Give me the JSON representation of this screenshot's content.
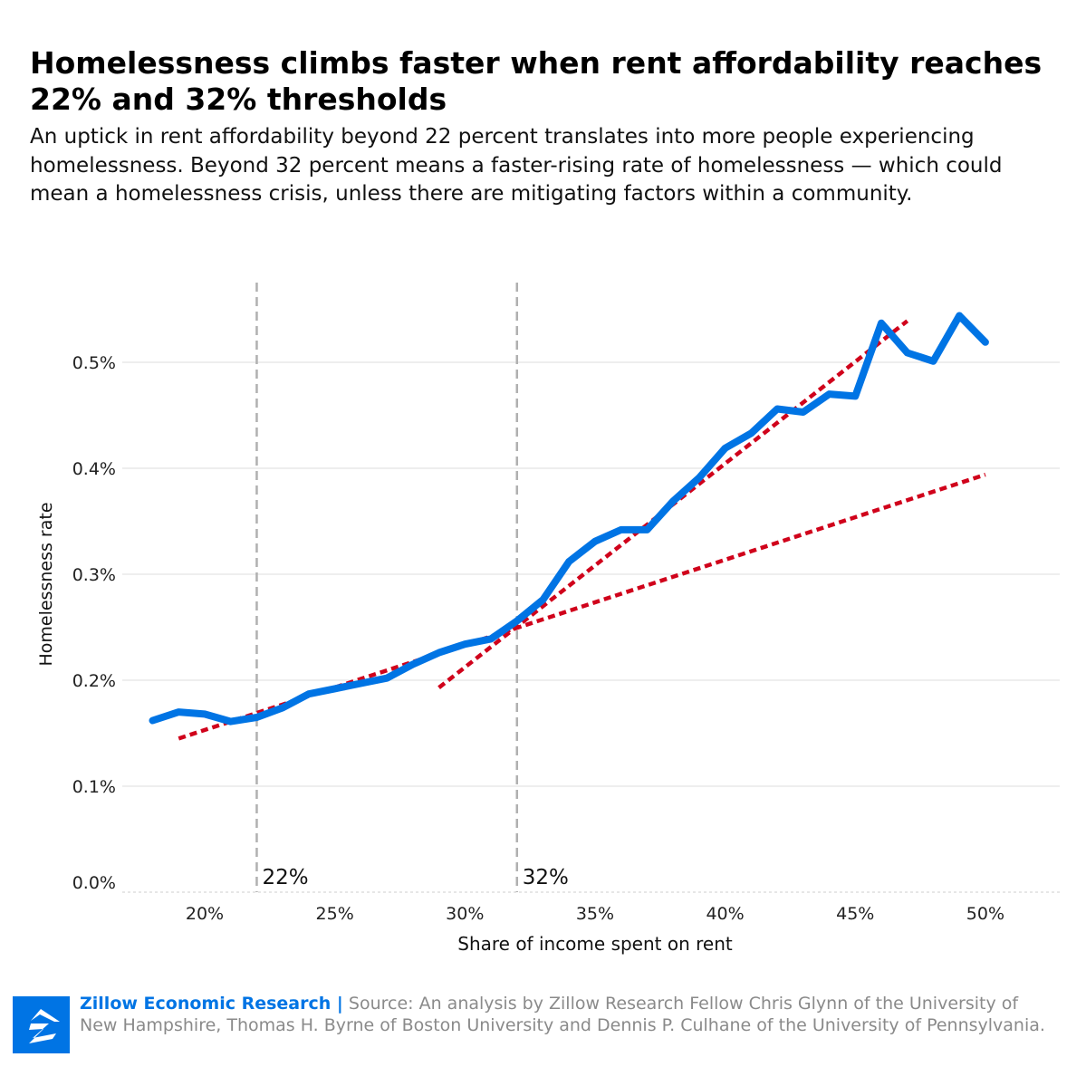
{
  "title": "Homelessness climbs faster when rent affordability reaches 22% and 32% thresholds",
  "subtitle": "An uptick in rent affordability beyond 22 percent translates into more people experiencing homelessness. Beyond 32 percent means a faster-rising rate of homelessness — which could mean a homelessness crisis, unless there are mitigating factors within a community.",
  "footer": {
    "brand": "Zillow Economic Research |",
    "source": "Source: An analysis by Zillow Research Fellow Chris Glynn of the University of New Hampshire, Thomas H. Byrne of Boston University and Dennis P. Culhane of the University of Pennsylvania.",
    "logo": "zillow-logo"
  },
  "colors": {
    "line": "#0074e4",
    "trend": "#d0021b",
    "threshold": "#b0b0b0",
    "grid": "#eeeeee"
  },
  "chart_data": {
    "type": "line",
    "xlabel": "Share of income spent on rent",
    "ylabel": "Homelessness rate",
    "xlim": [
      16.8,
      52.9
    ],
    "ylim": [
      0,
      0.55
    ],
    "xticks": [
      20,
      25,
      30,
      35,
      40,
      45,
      50
    ],
    "xtick_labels": [
      "20%",
      "25%",
      "30%",
      "35%",
      "40%",
      "45%",
      "50%"
    ],
    "yticks": [
      0,
      0.1,
      0.2,
      0.3,
      0.4,
      0.5
    ],
    "ytick_labels": [
      "0.0%",
      "0.1%",
      "0.2%",
      "0.3%",
      "0.4%",
      "0.5%"
    ],
    "grid": "horizontal",
    "series": [
      {
        "x": [
          18,
          19,
          20,
          21,
          22,
          23,
          24,
          25,
          26,
          27,
          28,
          29,
          30,
          31,
          32,
          33,
          34,
          35,
          36,
          37,
          38,
          39,
          40,
          41,
          42,
          43,
          44,
          45,
          46,
          47,
          48,
          49,
          50
        ],
        "y": [
          0.162,
          0.17,
          0.168,
          0.161,
          0.165,
          0.174,
          0.187,
          0.192,
          0.197,
          0.202,
          0.215,
          0.226,
          0.234,
          0.239,
          0.256,
          0.276,
          0.312,
          0.331,
          0.342,
          0.342,
          0.369,
          0.391,
          0.419,
          0.433,
          0.456,
          0.453,
          0.47,
          0.468,
          0.537,
          0.509,
          0.501,
          0.544,
          0.519
        ]
      }
    ],
    "trend_lines": [
      {
        "x": [
          19,
          50
        ],
        "y": [
          0.145,
          0.394
        ]
      },
      {
        "x": [
          29,
          47
        ],
        "y": [
          0.193,
          0.539
        ]
      }
    ],
    "thresholds": [
      {
        "x": 22,
        "label": "22%"
      },
      {
        "x": 32,
        "label": "32%"
      }
    ]
  }
}
